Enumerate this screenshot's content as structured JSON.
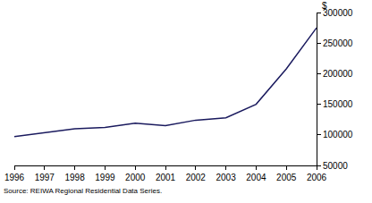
{
  "chart_data": {
    "type": "line",
    "x": [
      1996,
      1997,
      1998,
      1999,
      2000,
      2001,
      2002,
      2003,
      2004,
      2005,
      2006
    ],
    "values": [
      97000,
      103000,
      110000,
      112000,
      119000,
      115000,
      124000,
      128000,
      150000,
      208000,
      275000
    ],
    "color": "#1a1a5e",
    "xlim": [
      1996,
      2006
    ],
    "xticks": [
      1996,
      1997,
      1998,
      1999,
      2000,
      2001,
      2002,
      2003,
      2004,
      2005,
      2006
    ],
    "ylim": [
      50000,
      300000
    ],
    "yticks": [
      50000,
      100000,
      150000,
      200000,
      250000,
      300000
    ],
    "ylabel": "$",
    "source": "Source: REIWA Regional Residential Data Series.",
    "grid": false
  }
}
